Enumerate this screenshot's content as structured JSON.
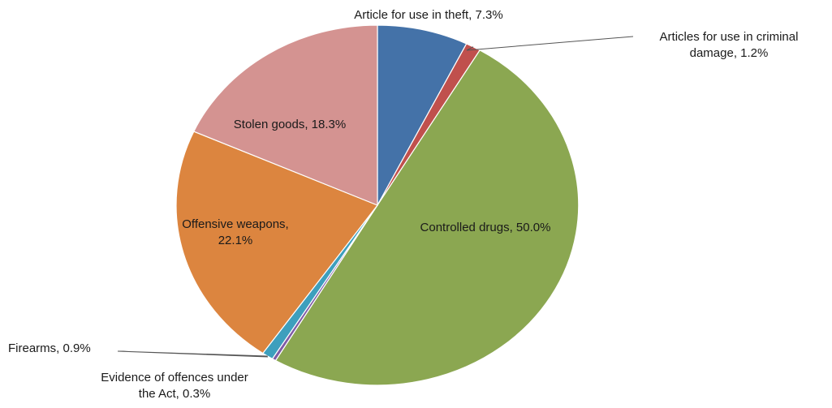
{
  "chart_data": {
    "type": "pie",
    "title": "",
    "legend": "none",
    "slices": [
      {
        "label": "Article for use in theft",
        "value": 7.3,
        "display": "Article for use in theft, 7.3%",
        "color": "#4472a8"
      },
      {
        "label": "Articles for use in criminal damage",
        "value": 1.2,
        "display": "Articles for use in criminal damage, 1.2%",
        "color": "#c0504d"
      },
      {
        "label": "Controlled drugs",
        "value": 50.0,
        "display": "Controlled drugs, 50.0%",
        "color": "#8ba751"
      },
      {
        "label": "Evidence of offences under the Act",
        "value": 0.3,
        "display": "Evidence of offences under the Act, 0.3%",
        "color": "#7f5ba6"
      },
      {
        "label": "Firearms",
        "value": 0.9,
        "display": "Firearms, 0.9%",
        "color": "#3d9fbd"
      },
      {
        "label": "Offensive weapons",
        "value": 22.1,
        "display": "Offensive weapons, 22.1%",
        "color": "#dc853f"
      },
      {
        "label": "Stolen goods",
        "value": 18.3,
        "display": "Stolen goods, 18.3%",
        "color": "#d49391"
      }
    ]
  }
}
